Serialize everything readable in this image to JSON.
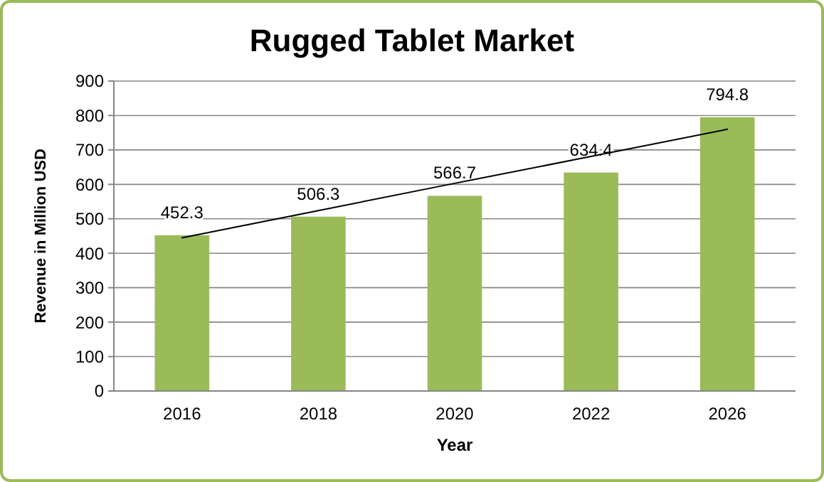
{
  "chart_data": {
    "type": "bar",
    "title": "Rugged Tablet Market",
    "xlabel": "Year",
    "ylabel": "Revenue in Million USD",
    "categories": [
      "2016",
      "2018",
      "2020",
      "2022",
      "2026"
    ],
    "series": [
      {
        "color": "#9bbb59",
        "values": [
          452.3,
          506.3,
          566.7,
          634.4,
          794.8
        ],
        "value_labels": [
          "452.3",
          "506.3",
          "566.7",
          "634.4",
          "794.8"
        ]
      },
      {
        "type": "line",
        "color": "#000000",
        "values": [
          445,
          524,
          603,
          681,
          760
        ]
      }
    ],
    "ylim": [
      0,
      900
    ],
    "yticks": [
      0,
      100,
      200,
      300,
      400,
      500,
      600,
      700,
      800,
      900
    ],
    "grid": "y"
  }
}
